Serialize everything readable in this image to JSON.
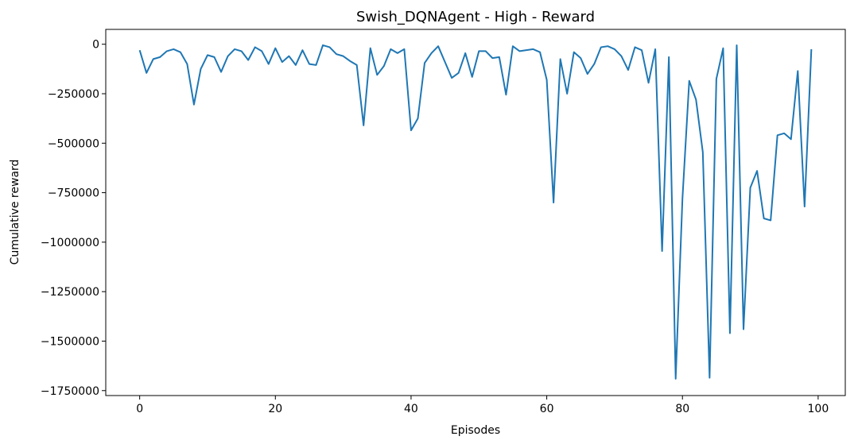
{
  "chart_data": {
    "type": "line",
    "title": "Swish_DQNAgent - High - Reward",
    "xlabel": "Episodes",
    "ylabel": "Cumulative reward",
    "xlim": [
      -5,
      104
    ],
    "ylim": [
      -1775000,
      75000
    ],
    "xticks": [
      0,
      20,
      40,
      60,
      80,
      100
    ],
    "yticks": [
      0,
      -250000,
      -500000,
      -750000,
      -1000000,
      -1250000,
      -1500000,
      -1750000
    ],
    "xtick_labels": [
      "0",
      "20",
      "40",
      "60",
      "80",
      "100"
    ],
    "ytick_labels": [
      "0",
      "−250000",
      "−500000",
      "−750000",
      "−1000000",
      "−1250000",
      "−1500000",
      "−1750000"
    ],
    "grid": false,
    "line_color": "#1f77b4",
    "series": [
      {
        "x": [
          0,
          1,
          2,
          3,
          4,
          5,
          6,
          7,
          8,
          9,
          10,
          11,
          12,
          13,
          14,
          15,
          16,
          17,
          18,
          19,
          20,
          21,
          22,
          23,
          24,
          25,
          26,
          27,
          28,
          29,
          30,
          31,
          32,
          33,
          34,
          35,
          36,
          37,
          38,
          39,
          40,
          41,
          42,
          43,
          44,
          45,
          46,
          47,
          48,
          49,
          50,
          51,
          52,
          53,
          54,
          55,
          56,
          57,
          58,
          59,
          60,
          61,
          62,
          63,
          64,
          65,
          66,
          67,
          68,
          69,
          70,
          71,
          72,
          73,
          74,
          75,
          76,
          77,
          78,
          79,
          80,
          81,
          82,
          83,
          84,
          85,
          86,
          87,
          88,
          89,
          90,
          91,
          92,
          93,
          94,
          95,
          96,
          97,
          98,
          99
        ],
        "values": [
          -30000,
          -145000,
          -75000,
          -65000,
          -35000,
          -25000,
          -40000,
          -100000,
          -305000,
          -125000,
          -55000,
          -65000,
          -140000,
          -60000,
          -25000,
          -35000,
          -80000,
          -15000,
          -35000,
          -100000,
          -20000,
          -90000,
          -60000,
          -105000,
          -30000,
          -100000,
          -105000,
          -5000,
          -15000,
          -50000,
          -60000,
          -85000,
          -105000,
          -410000,
          -20000,
          -155000,
          -110000,
          -25000,
          -45000,
          -25000,
          -435000,
          -375000,
          -95000,
          -45000,
          -10000,
          -90000,
          -170000,
          -145000,
          -45000,
          -165000,
          -35000,
          -35000,
          -70000,
          -65000,
          -255000,
          -10000,
          -35000,
          -30000,
          -25000,
          -40000,
          -180000,
          -800000,
          -75000,
          -250000,
          -40000,
          -70000,
          -150000,
          -100000,
          -15000,
          -10000,
          -25000,
          -60000,
          -130000,
          -15000,
          -30000,
          -195000,
          -25000,
          -1045000,
          -65000,
          -1690000,
          -780000,
          -185000,
          -280000,
          -545000,
          -1685000,
          -175000,
          -20000,
          -1460000,
          -5000,
          -1440000,
          -725000,
          -640000,
          -880000,
          -890000,
          -460000,
          -450000,
          -480000,
          -135000,
          -820000,
          -25000
        ]
      }
    ]
  }
}
